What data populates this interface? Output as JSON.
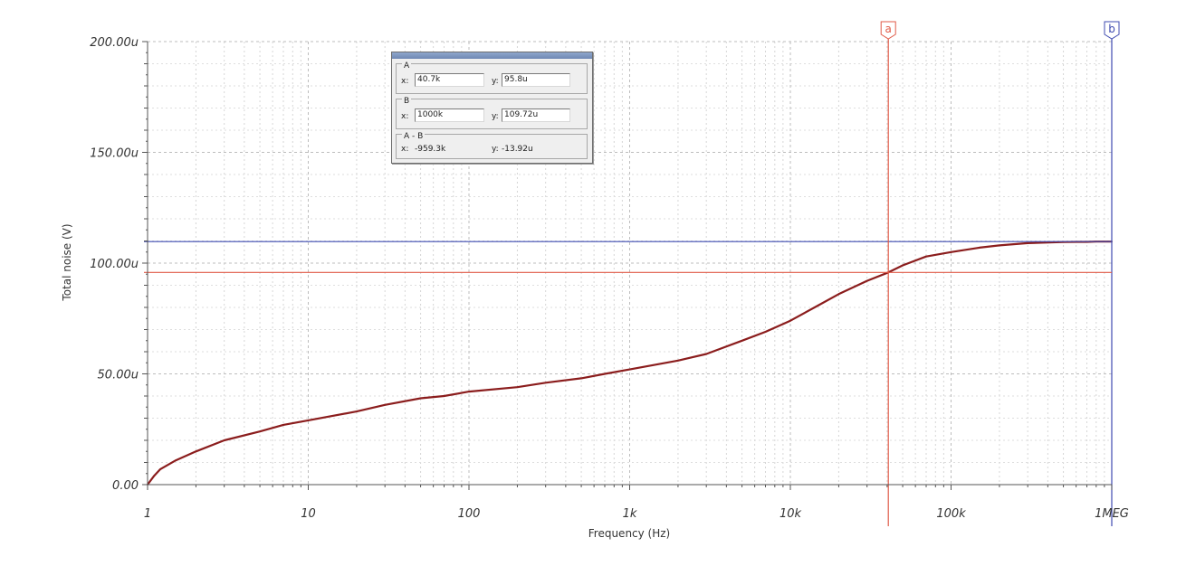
{
  "chart_data": {
    "type": "line",
    "xlabel": "Frequency (Hz)",
    "ylabel": "Total noise (V)",
    "x_scale": "log",
    "xlim": [
      1,
      1000000
    ],
    "ylim": [
      0,
      0.0002
    ],
    "grid": true,
    "x_ticks": [
      {
        "value": 1,
        "label": "1"
      },
      {
        "value": 10,
        "label": "10"
      },
      {
        "value": 100,
        "label": "100"
      },
      {
        "value": 1000,
        "label": "1k"
      },
      {
        "value": 10000,
        "label": "10k"
      },
      {
        "value": 100000,
        "label": "100k"
      },
      {
        "value": 1000000,
        "label": "1MEG"
      }
    ],
    "y_ticks": [
      {
        "value": 0,
        "label": "0.00"
      },
      {
        "value": 5e-05,
        "label": "50.00u"
      },
      {
        "value": 0.0001,
        "label": "100.00u"
      },
      {
        "value": 0.00015,
        "label": "150.00u"
      },
      {
        "value": 0.0002,
        "label": "200.00u"
      }
    ],
    "series": [
      {
        "color": "#8b1d1d",
        "x": [
          1,
          1.1,
          1.2,
          1.5,
          2,
          3,
          5,
          7,
          10,
          20,
          30,
          50,
          70,
          100,
          200,
          300,
          500,
          700,
          1000,
          2000,
          3000,
          5000,
          7000,
          10000,
          15000,
          20000,
          30000,
          40700,
          50000,
          70000,
          100000,
          150000,
          200000,
          300000,
          500000,
          600000,
          700000,
          800000,
          1000000
        ],
        "y": [
          0,
          4e-06,
          7e-06,
          1.1e-05,
          1.5e-05,
          2e-05,
          2.4e-05,
          2.7e-05,
          2.9e-05,
          3.3e-05,
          3.6e-05,
          3.9e-05,
          4e-05,
          4.2e-05,
          4.4e-05,
          4.6e-05,
          4.8e-05,
          5e-05,
          5.2e-05,
          5.6e-05,
          5.9e-05,
          6.5e-05,
          6.9e-05,
          7.4e-05,
          8.1e-05,
          8.6e-05,
          9.2e-05,
          9.58e-05,
          9.9e-05,
          0.000103,
          0.000105,
          0.000107,
          0.000108,
          0.000109,
          0.0001095,
          0.0001096,
          0.0001096,
          0.0001097,
          0.0001097
        ]
      }
    ],
    "cursors": {
      "a": {
        "label": "a",
        "x": 40700,
        "y": 9.58e-05,
        "color": "#e05a47"
      },
      "b": {
        "label": "b",
        "x": 1000000,
        "y": 0.00010972,
        "color": "#3f4bb0"
      }
    }
  },
  "readout": {
    "a": {
      "name": "A",
      "x_label": "x:",
      "x_value": "40.7k",
      "y_label": "y:",
      "y_value": "95.8u"
    },
    "b": {
      "name": "B",
      "x_label": "x:",
      "x_value": "1000k",
      "y_label": "y:",
      "y_value": "109.72u"
    },
    "diff": {
      "name": "A - B",
      "x_label": "x:",
      "x_value": "-959.3k",
      "y_label": "y:",
      "y_value": "-13.92u"
    }
  }
}
